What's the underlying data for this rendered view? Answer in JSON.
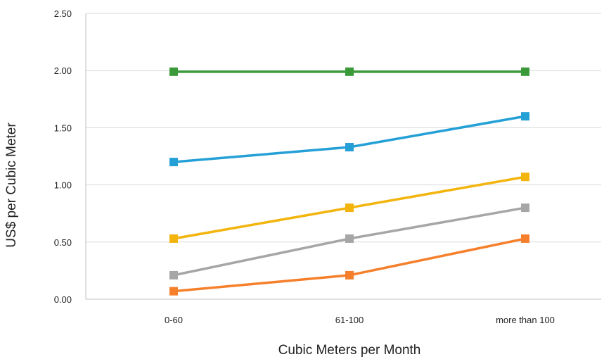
{
  "chart_data": {
    "type": "line",
    "title": "",
    "xlabel": "Cubic Meters per Month",
    "ylabel": "US$ per Cubic Meter",
    "categories": [
      "0-60",
      "61-100",
      "more than 100"
    ],
    "ylim": [
      0,
      2.5
    ],
    "yticks": [
      "0.00",
      "0.50",
      "1.00",
      "1.50",
      "2.00",
      "2.50"
    ],
    "ytick_values": [
      0,
      0.5,
      1.0,
      1.5,
      2.0,
      2.5
    ],
    "grid": true,
    "legend": "none",
    "markers": "square",
    "series": [
      {
        "color": "#3a9a3a",
        "values": [
          1.99,
          1.99,
          1.99
        ]
      },
      {
        "color": "#25a0d6",
        "values": [
          1.2,
          1.33,
          1.6
        ]
      },
      {
        "color": "#f2b40d",
        "values": [
          0.53,
          0.8,
          1.07
        ]
      },
      {
        "color": "#a6a6a6",
        "values": [
          0.21,
          0.53,
          0.8
        ]
      },
      {
        "color": "#f57f2b",
        "values": [
          0.07,
          0.21,
          0.53
        ]
      }
    ]
  }
}
